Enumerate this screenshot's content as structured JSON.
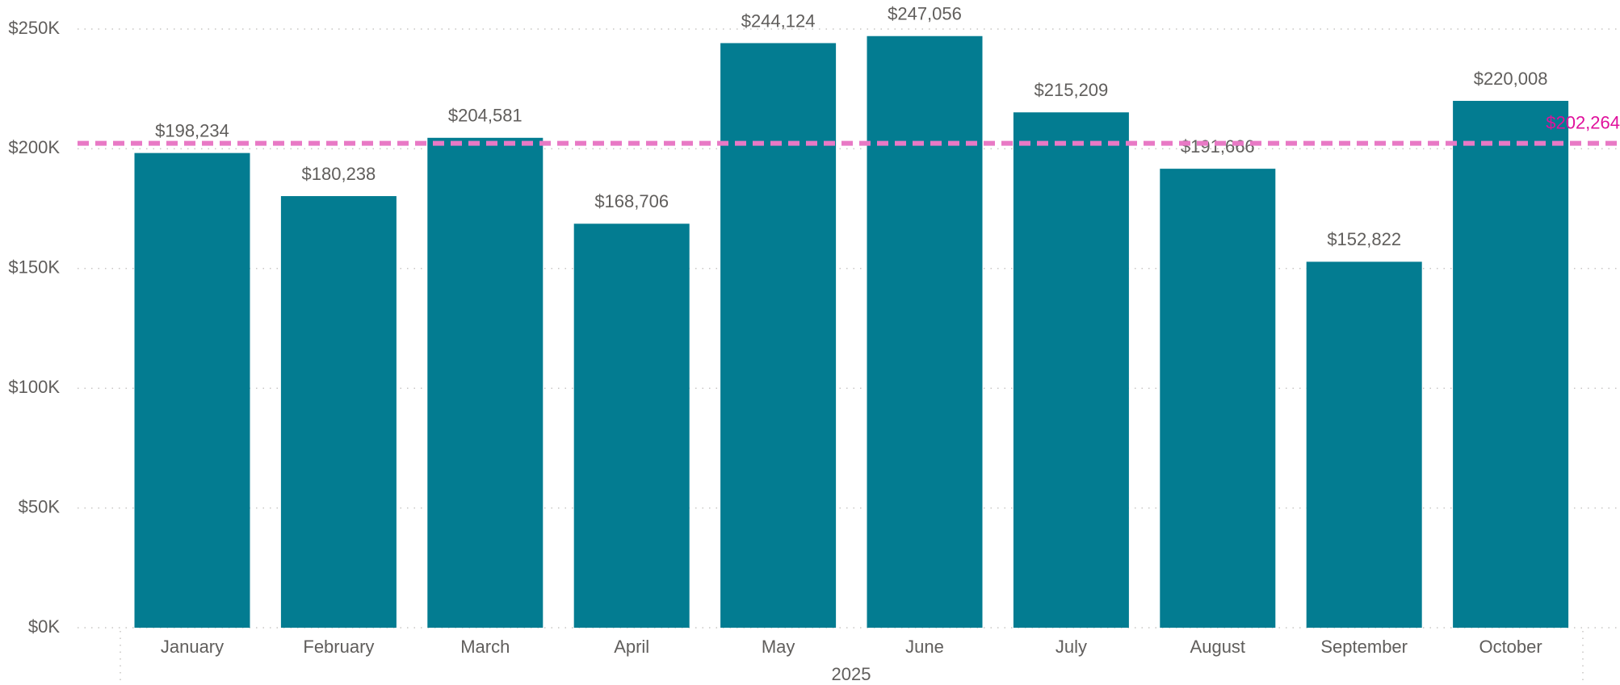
{
  "chart_data": {
    "type": "bar",
    "categories": [
      "January",
      "February",
      "March",
      "April",
      "May",
      "June",
      "July",
      "August",
      "September",
      "October"
    ],
    "values": [
      198234,
      180238,
      204581,
      168706,
      244124,
      247056,
      215209,
      191666,
      152822,
      220008
    ],
    "value_labels": [
      "$198,234",
      "$180,238",
      "$204,581",
      "$168,706",
      "$244,124",
      "$247,056",
      "$215,209",
      "$191,666",
      "$152,822",
      "$220,008"
    ],
    "color": "#037c91",
    "x_group_label": "2025",
    "ylim": [
      0,
      250000
    ],
    "yticks": [
      {
        "value": 0,
        "label": "$0K"
      },
      {
        "value": 50000,
        "label": "$50K"
      },
      {
        "value": 100000,
        "label": "$100K"
      },
      {
        "value": 150000,
        "label": "$150K"
      },
      {
        "value": 200000,
        "label": "$200K"
      },
      {
        "value": 250000,
        "label": "$250K"
      }
    ],
    "grid": true,
    "reference_line": {
      "value": 202264,
      "label": "$202,264",
      "color": "#e879c5"
    }
  }
}
